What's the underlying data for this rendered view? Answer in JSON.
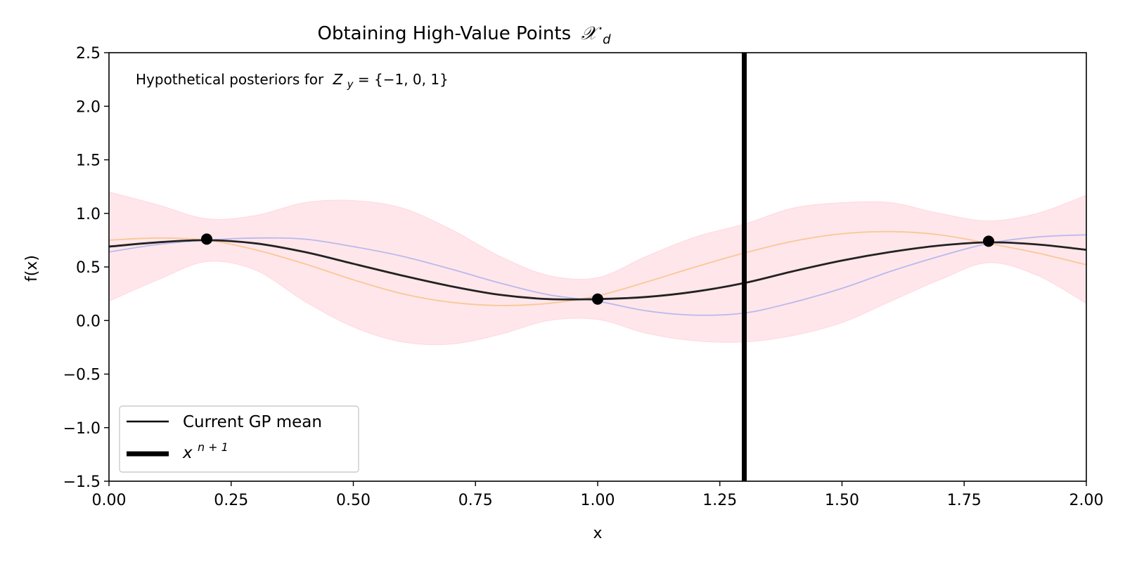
{
  "chart_data": {
    "type": "line",
    "title": "Obtaining High-Value Points",
    "title_symbol": "𝒳",
    "title_subscript": "d",
    "xlabel": "x",
    "ylabel": "f(x)",
    "xlim": [
      0.0,
      2.0
    ],
    "ylim": [
      -1.5,
      2.5
    ],
    "xticks": [
      "0.00",
      "0.25",
      "0.50",
      "0.75",
      "1.00",
      "1.25",
      "1.50",
      "1.75",
      "2.00"
    ],
    "yticks": [
      "−1.5",
      "−1.0",
      "−0.5",
      "0.0",
      "0.5",
      "1.0",
      "1.5",
      "2.0",
      "2.5"
    ],
    "grid": false,
    "annotation": {
      "text": "Hypothetical posteriors for",
      "math_var": "Z",
      "math_sub": "y",
      "math_rest": " = {−1, 0, 1}"
    },
    "legend": {
      "position": "lower-left",
      "entries": [
        {
          "label": "Current GP mean",
          "color": "#000000",
          "style": "line"
        },
        {
          "label": "x",
          "superscript": "n + 1",
          "color": "#000000",
          "style": "thick-line"
        }
      ]
    },
    "observations": {
      "x": [
        0.2,
        1.0,
        1.8
      ],
      "y": [
        0.76,
        0.2,
        0.74
      ],
      "color": "#000000"
    },
    "vertical_line": {
      "x": 1.3,
      "color": "#000000"
    },
    "series": [
      {
        "role": "gp-mean",
        "color": "#222222",
        "x": [
          0.0,
          0.1,
          0.2,
          0.3,
          0.4,
          0.5,
          0.6,
          0.7,
          0.8,
          0.9,
          1.0,
          1.1,
          1.2,
          1.3,
          1.4,
          1.5,
          1.6,
          1.7,
          1.8,
          1.9,
          2.0
        ],
        "y": [
          0.69,
          0.73,
          0.75,
          0.72,
          0.64,
          0.53,
          0.42,
          0.32,
          0.24,
          0.2,
          0.2,
          0.22,
          0.27,
          0.35,
          0.46,
          0.56,
          0.64,
          0.7,
          0.73,
          0.71,
          0.66
        ]
      },
      {
        "role": "hypothetical-posterior-blue",
        "color": "#b9b9ee",
        "x": [
          0.0,
          0.1,
          0.2,
          0.3,
          0.4,
          0.5,
          0.6,
          0.7,
          0.8,
          0.9,
          1.0,
          1.1,
          1.2,
          1.3,
          1.4,
          1.5,
          1.6,
          1.7,
          1.8,
          1.9,
          2.0
        ],
        "y": [
          0.64,
          0.71,
          0.75,
          0.77,
          0.76,
          0.69,
          0.6,
          0.48,
          0.35,
          0.24,
          0.18,
          0.09,
          0.05,
          0.07,
          0.17,
          0.3,
          0.46,
          0.6,
          0.72,
          0.78,
          0.8
        ]
      },
      {
        "role": "hypothetical-posterior-orange",
        "color": "#f8c896",
        "x": [
          0.0,
          0.1,
          0.2,
          0.3,
          0.4,
          0.5,
          0.6,
          0.7,
          0.8,
          0.9,
          1.0,
          1.1,
          1.2,
          1.3,
          1.4,
          1.5,
          1.6,
          1.7,
          1.8,
          1.9,
          2.0
        ],
        "y": [
          0.75,
          0.77,
          0.75,
          0.66,
          0.53,
          0.38,
          0.25,
          0.17,
          0.14,
          0.16,
          0.23,
          0.36,
          0.5,
          0.63,
          0.74,
          0.81,
          0.83,
          0.8,
          0.72,
          0.63,
          0.52
        ]
      }
    ],
    "confidence_band": {
      "color": "#ffc0cb",
      "x": [
        0.0,
        0.1,
        0.2,
        0.3,
        0.4,
        0.5,
        0.6,
        0.7,
        0.8,
        0.9,
        1.0,
        1.1,
        1.2,
        1.3,
        1.4,
        1.5,
        1.6,
        1.7,
        1.8,
        1.9,
        2.0
      ],
      "upper": [
        1.2,
        1.08,
        0.95,
        0.98,
        1.1,
        1.12,
        1.05,
        0.85,
        0.6,
        0.42,
        0.4,
        0.6,
        0.78,
        0.9,
        1.05,
        1.1,
        1.1,
        1.0,
        0.93,
        1.0,
        1.17
      ],
      "lower": [
        0.18,
        0.38,
        0.55,
        0.47,
        0.18,
        -0.06,
        -0.2,
        -0.22,
        -0.13,
        0.0,
        0.01,
        -0.12,
        -0.19,
        -0.2,
        -0.14,
        -0.02,
        0.18,
        0.38,
        0.54,
        0.42,
        0.16
      ]
    }
  }
}
